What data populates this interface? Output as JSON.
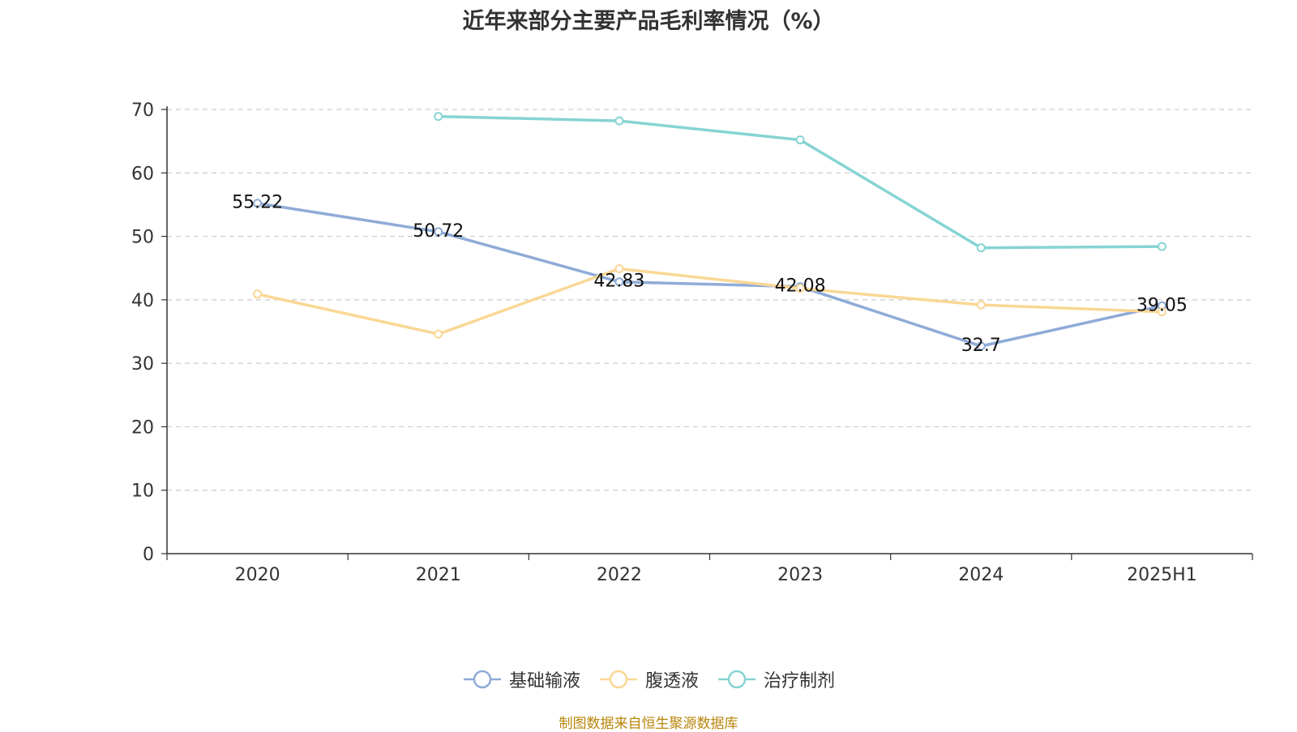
{
  "chart_data": {
    "type": "line",
    "title": "近年来部分主要产品毛利率情况（%）",
    "categories": [
      "2020",
      "2021",
      "2022",
      "2023",
      "2024",
      "2025H1"
    ],
    "ylim": [
      0,
      70
    ],
    "yticks": [
      0,
      10,
      20,
      30,
      40,
      50,
      60,
      70
    ],
    "grid": true,
    "legend_position": "bottom",
    "series": [
      {
        "name": "基础输液",
        "color": "#8fabd8",
        "values": [
          55.22,
          50.72,
          42.83,
          42.08,
          32.7,
          39.05
        ],
        "show_labels": true
      },
      {
        "name": "腹透液",
        "color": "#fad795",
        "values": [
          40.9,
          34.6,
          44.9,
          41.8,
          39.2,
          38.1
        ],
        "show_labels": false
      },
      {
        "name": "治疗制剂",
        "color": "#86d4d3",
        "values": [
          null,
          68.9,
          68.2,
          65.2,
          48.2,
          48.4
        ],
        "show_labels": false
      }
    ]
  },
  "footer": {
    "source": "制图数据来自恒生聚源数据库"
  }
}
